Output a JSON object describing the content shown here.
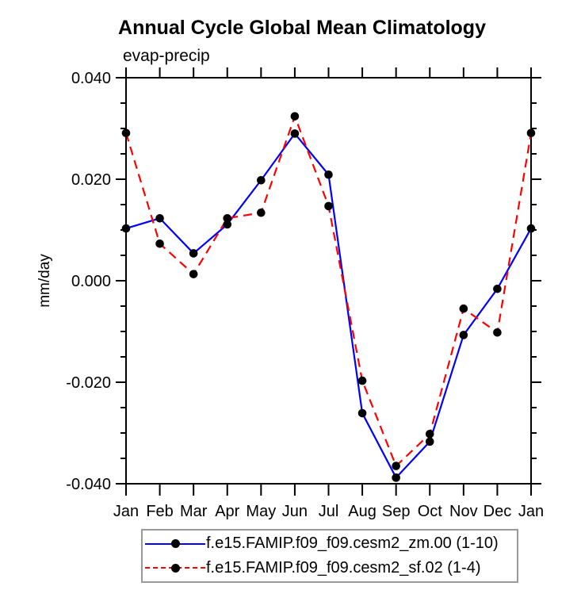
{
  "chart_data": {
    "type": "line",
    "title": "Annual Cycle Global Mean Climatology",
    "subtitle": "evap-precip",
    "ylabel": "mm/day",
    "categories": [
      "Jan",
      "Feb",
      "Mar",
      "Apr",
      "May",
      "Jun",
      "Jul",
      "Aug",
      "Sep",
      "Oct",
      "Nov",
      "Dec",
      "Jan"
    ],
    "series": [
      {
        "name": "f.e15.FAMIP.f09_f09.cesm2_zm.00 (1-10)",
        "color": "#0000ff",
        "style": "solid",
        "marker": "circle",
        "marker_color": "#000000",
        "values": [
          0.0103,
          0.0123,
          0.0054,
          0.0111,
          0.0198,
          0.029,
          0.0209,
          -0.0261,
          -0.0388,
          -0.0317,
          -0.0107,
          -0.0016,
          0.0103
        ]
      },
      {
        "name": "f.e15.FAMIP.f09_f09.cesm2_sf.02 (1-4)",
        "color": "#ff0000",
        "style": "dashed",
        "marker": "circle",
        "marker_color": "#000000",
        "values": [
          0.0291,
          0.0073,
          0.0013,
          0.0123,
          0.0134,
          0.0324,
          0.0147,
          -0.0197,
          -0.0365,
          -0.0302,
          -0.0055,
          -0.0102,
          0.0291
        ]
      }
    ],
    "ylim": [
      -0.04,
      0.04
    ],
    "ytick_values": [
      0.04,
      0.02,
      0.0,
      -0.02,
      -0.04
    ],
    "ytick_labels": [
      "0.040",
      "0.020",
      "0.000",
      "-0.020",
      "-0.040"
    ],
    "minor_tick_step": 0.005,
    "axis_color": "#000000",
    "grid": false,
    "legend_position": "bottom"
  }
}
